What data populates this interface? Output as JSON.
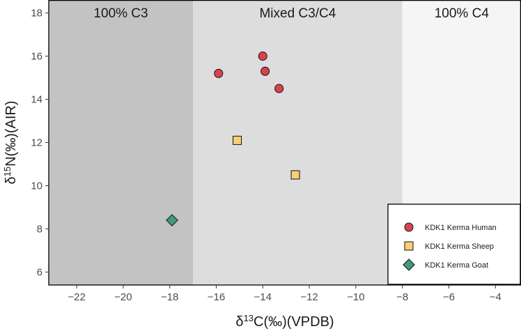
{
  "chart_data": {
    "type": "scatter",
    "title": "",
    "xlabel": {
      "main": "δ",
      "sup": "13",
      "rest": "C(‰)(VPDB)"
    },
    "ylabel": {
      "main": "δ",
      "sup": "15",
      "rest": "N(‰)(AIR)"
    },
    "xlim": [
      -23.2,
      -2.9
    ],
    "ylim": [
      5.4,
      18.6
    ],
    "xticks": [
      -22,
      -20,
      -18,
      -16,
      -14,
      -12,
      -10,
      -8,
      -6,
      -4
    ],
    "yticks": [
      6,
      8,
      10,
      12,
      14,
      16,
      18
    ],
    "xtick_labels": [
      "−22",
      "−20",
      "−18",
      "−16",
      "−14",
      "−12",
      "−10",
      "−8",
      "−6",
      "−4"
    ],
    "ytick_labels": [
      "6",
      "8",
      "10",
      "12",
      "14",
      "16",
      "18"
    ],
    "zones": [
      {
        "label": "100% C3",
        "x0": -23.2,
        "x1": -17,
        "color": "#c3c3c3"
      },
      {
        "label": "Mixed C3/C4",
        "x0": -17,
        "x1": -8,
        "color": "#dddddd"
      },
      {
        "label": "100% C4",
        "x0": -8,
        "x1": -2.9,
        "color": "#f5f5f5"
      }
    ],
    "series": [
      {
        "name": "KDK1 Kerma Human",
        "marker": "circle",
        "color": "#d9444b",
        "points": [
          {
            "x": -15.9,
            "y": 15.2
          },
          {
            "x": -14.0,
            "y": 16.0
          },
          {
            "x": -13.9,
            "y": 15.3
          },
          {
            "x": -13.3,
            "y": 14.5
          }
        ]
      },
      {
        "name": "KDK1 Kerma Sheep",
        "marker": "square",
        "color": "#f7cf78",
        "points": [
          {
            "x": -15.1,
            "y": 12.1
          },
          {
            "x": -12.6,
            "y": 10.5
          }
        ]
      },
      {
        "name": "KDK1 Kerma Goat",
        "marker": "diamond",
        "color": "#3f9a80",
        "points": [
          {
            "x": -17.9,
            "y": 8.4
          }
        ]
      }
    ],
    "legend": "bottom-right",
    "grid": false
  }
}
